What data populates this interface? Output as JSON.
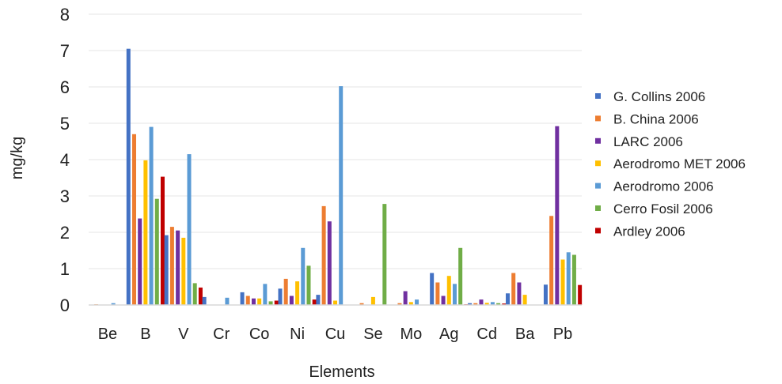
{
  "chart_data": {
    "type": "bar",
    "xlabel": "Elements",
    "ylabel": "mg/kg",
    "ylim": [
      0,
      8
    ],
    "yticks": [
      0,
      1,
      2,
      3,
      4,
      5,
      6,
      7,
      8
    ],
    "grid": true,
    "legend_position": "right",
    "categories": [
      "Be",
      "B",
      "V",
      "Cr",
      "Co",
      "Ni",
      "Cu",
      "Se",
      "Mo",
      "Ag",
      "Cd",
      "Ba",
      "Pb"
    ],
    "series": [
      {
        "name": "G. Collins 2006",
        "color": "#4472C4",
        "values": [
          0,
          7.05,
          1.92,
          0.22,
          0.35,
          0.45,
          0.28,
          0,
          0,
          0.88,
          0.05,
          0.32,
          0.56
        ]
      },
      {
        "name": "B. China 2006",
        "color": "#ED7D31",
        "values": [
          0.02,
          4.7,
          2.15,
          0,
          0.25,
          0.72,
          2.72,
          0.05,
          0.05,
          0.62,
          0.05,
          0.88,
          2.45
        ]
      },
      {
        "name": "LARC 2006",
        "color": "#7030A0",
        "values": [
          0,
          2.38,
          2.05,
          0,
          0.18,
          0.25,
          2.3,
          0,
          0.38,
          0.25,
          0.15,
          0.62,
          4.92
        ]
      },
      {
        "name": "Aerodromo MET  2006",
        "color": "#FFC000",
        "values": [
          0,
          3.98,
          1.85,
          0,
          0.18,
          0.65,
          0.12,
          0.22,
          0.08,
          0.8,
          0.06,
          0.28,
          1.25
        ]
      },
      {
        "name": "Aerodromo 2006",
        "color": "#5B9BD5",
        "values": [
          0.05,
          4.9,
          4.15,
          0.2,
          0.58,
          1.57,
          6.02,
          0,
          0.15,
          0.58,
          0.08,
          0,
          1.45
        ]
      },
      {
        "name": "Cerro Fosil 2006",
        "color": "#70AD47",
        "values": [
          0,
          2.92,
          0.6,
          0,
          0.1,
          1.08,
          0,
          2.78,
          0,
          1.57,
          0.05,
          0,
          1.38
        ]
      },
      {
        "name": "Ardley 2006",
        "color": "#C00000",
        "values": [
          0,
          3.53,
          0.48,
          0,
          0.12,
          0.15,
          0,
          0,
          0,
          0.02,
          0.04,
          0,
          0.55
        ]
      }
    ]
  }
}
